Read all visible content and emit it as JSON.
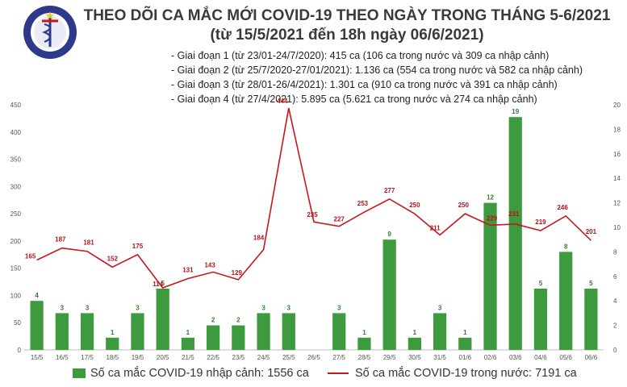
{
  "logo": {
    "top_text": "BỘ Y TẾ",
    "bottom_text": "MINISTRY OF HEALTH",
    "color": "#2d3a8c"
  },
  "title_line1": "THEO DÕI CA MẮC MỚI COVID-19 THEO NGÀY TRONG THÁNG 5-6/2021",
  "title_line2": "(từ 15/5/2021 đến 18h ngày 06/6/2021)",
  "stages": [
    "- Giai đoạn 1 (từ 23/01-24/7/2020): 415 ca (106 ca trong nước và 309 ca nhập cảnh)",
    "- Giai đoạn 2 (từ 25/7/2020-27/01/2021): 1.136 ca (554 ca trong nước và 582 ca nhập cảnh)",
    "- Giai đoạn 3 (từ 28/01-26/4/2021): 1.301 ca (910 ca trong nước và 391 ca nhập cảnh)",
    "- Giai đoạn 4 (từ 27/4/2021): 5.895 ca (5.621 ca trong nước và 274 ca nhập cảnh)"
  ],
  "legend": {
    "bar_label": "Số ca mắc COVID-19 nhập cảnh: 1556 ca",
    "line_label": "Số ca mắc COVID-19 trong nước: 7191 ca"
  },
  "chart_data": {
    "type": "bar+line",
    "categories": [
      "15/5",
      "16/5",
      "17/5",
      "18/5",
      "19/5",
      "20/5",
      "21/5",
      "22/5",
      "23/5",
      "24/5",
      "25/5",
      "26/5",
      "27/5",
      "28/5",
      "29/5",
      "30/5",
      "31/5",
      "01/6",
      "02/6",
      "03/6",
      "04/6",
      "05/6",
      "06/6"
    ],
    "series": [
      {
        "name": "Số ca mắc COVID-19 nhập cảnh: 1556 ca",
        "type": "bar",
        "axis": "right",
        "color": "#3e9a3e",
        "values": [
          4,
          3,
          3,
          1,
          3,
          5,
          1,
          2,
          2,
          3,
          3,
          null,
          3,
          1,
          9,
          1,
          3,
          1,
          12,
          19,
          5,
          8,
          5
        ]
      },
      {
        "name": "Số ca mắc COVID-19 trong nước: 7191 ca",
        "type": "line",
        "axis": "left",
        "color": "#c8161d",
        "values": [
          165,
          187,
          181,
          152,
          175,
          114,
          131,
          143,
          129,
          184,
          444,
          235,
          227,
          253,
          277,
          250,
          211,
          250,
          229,
          231,
          219,
          246,
          201
        ]
      }
    ],
    "y_left": {
      "min": 0,
      "max": 450,
      "ticks": [
        0,
        50,
        100,
        150,
        200,
        250,
        300,
        350,
        400,
        450
      ]
    },
    "y_right": {
      "min": 0,
      "max": 20,
      "ticks": [
        0,
        2,
        4,
        6,
        8,
        10,
        12,
        14,
        16,
        18,
        20
      ]
    },
    "grid": false,
    "legend_position": "bottom"
  }
}
